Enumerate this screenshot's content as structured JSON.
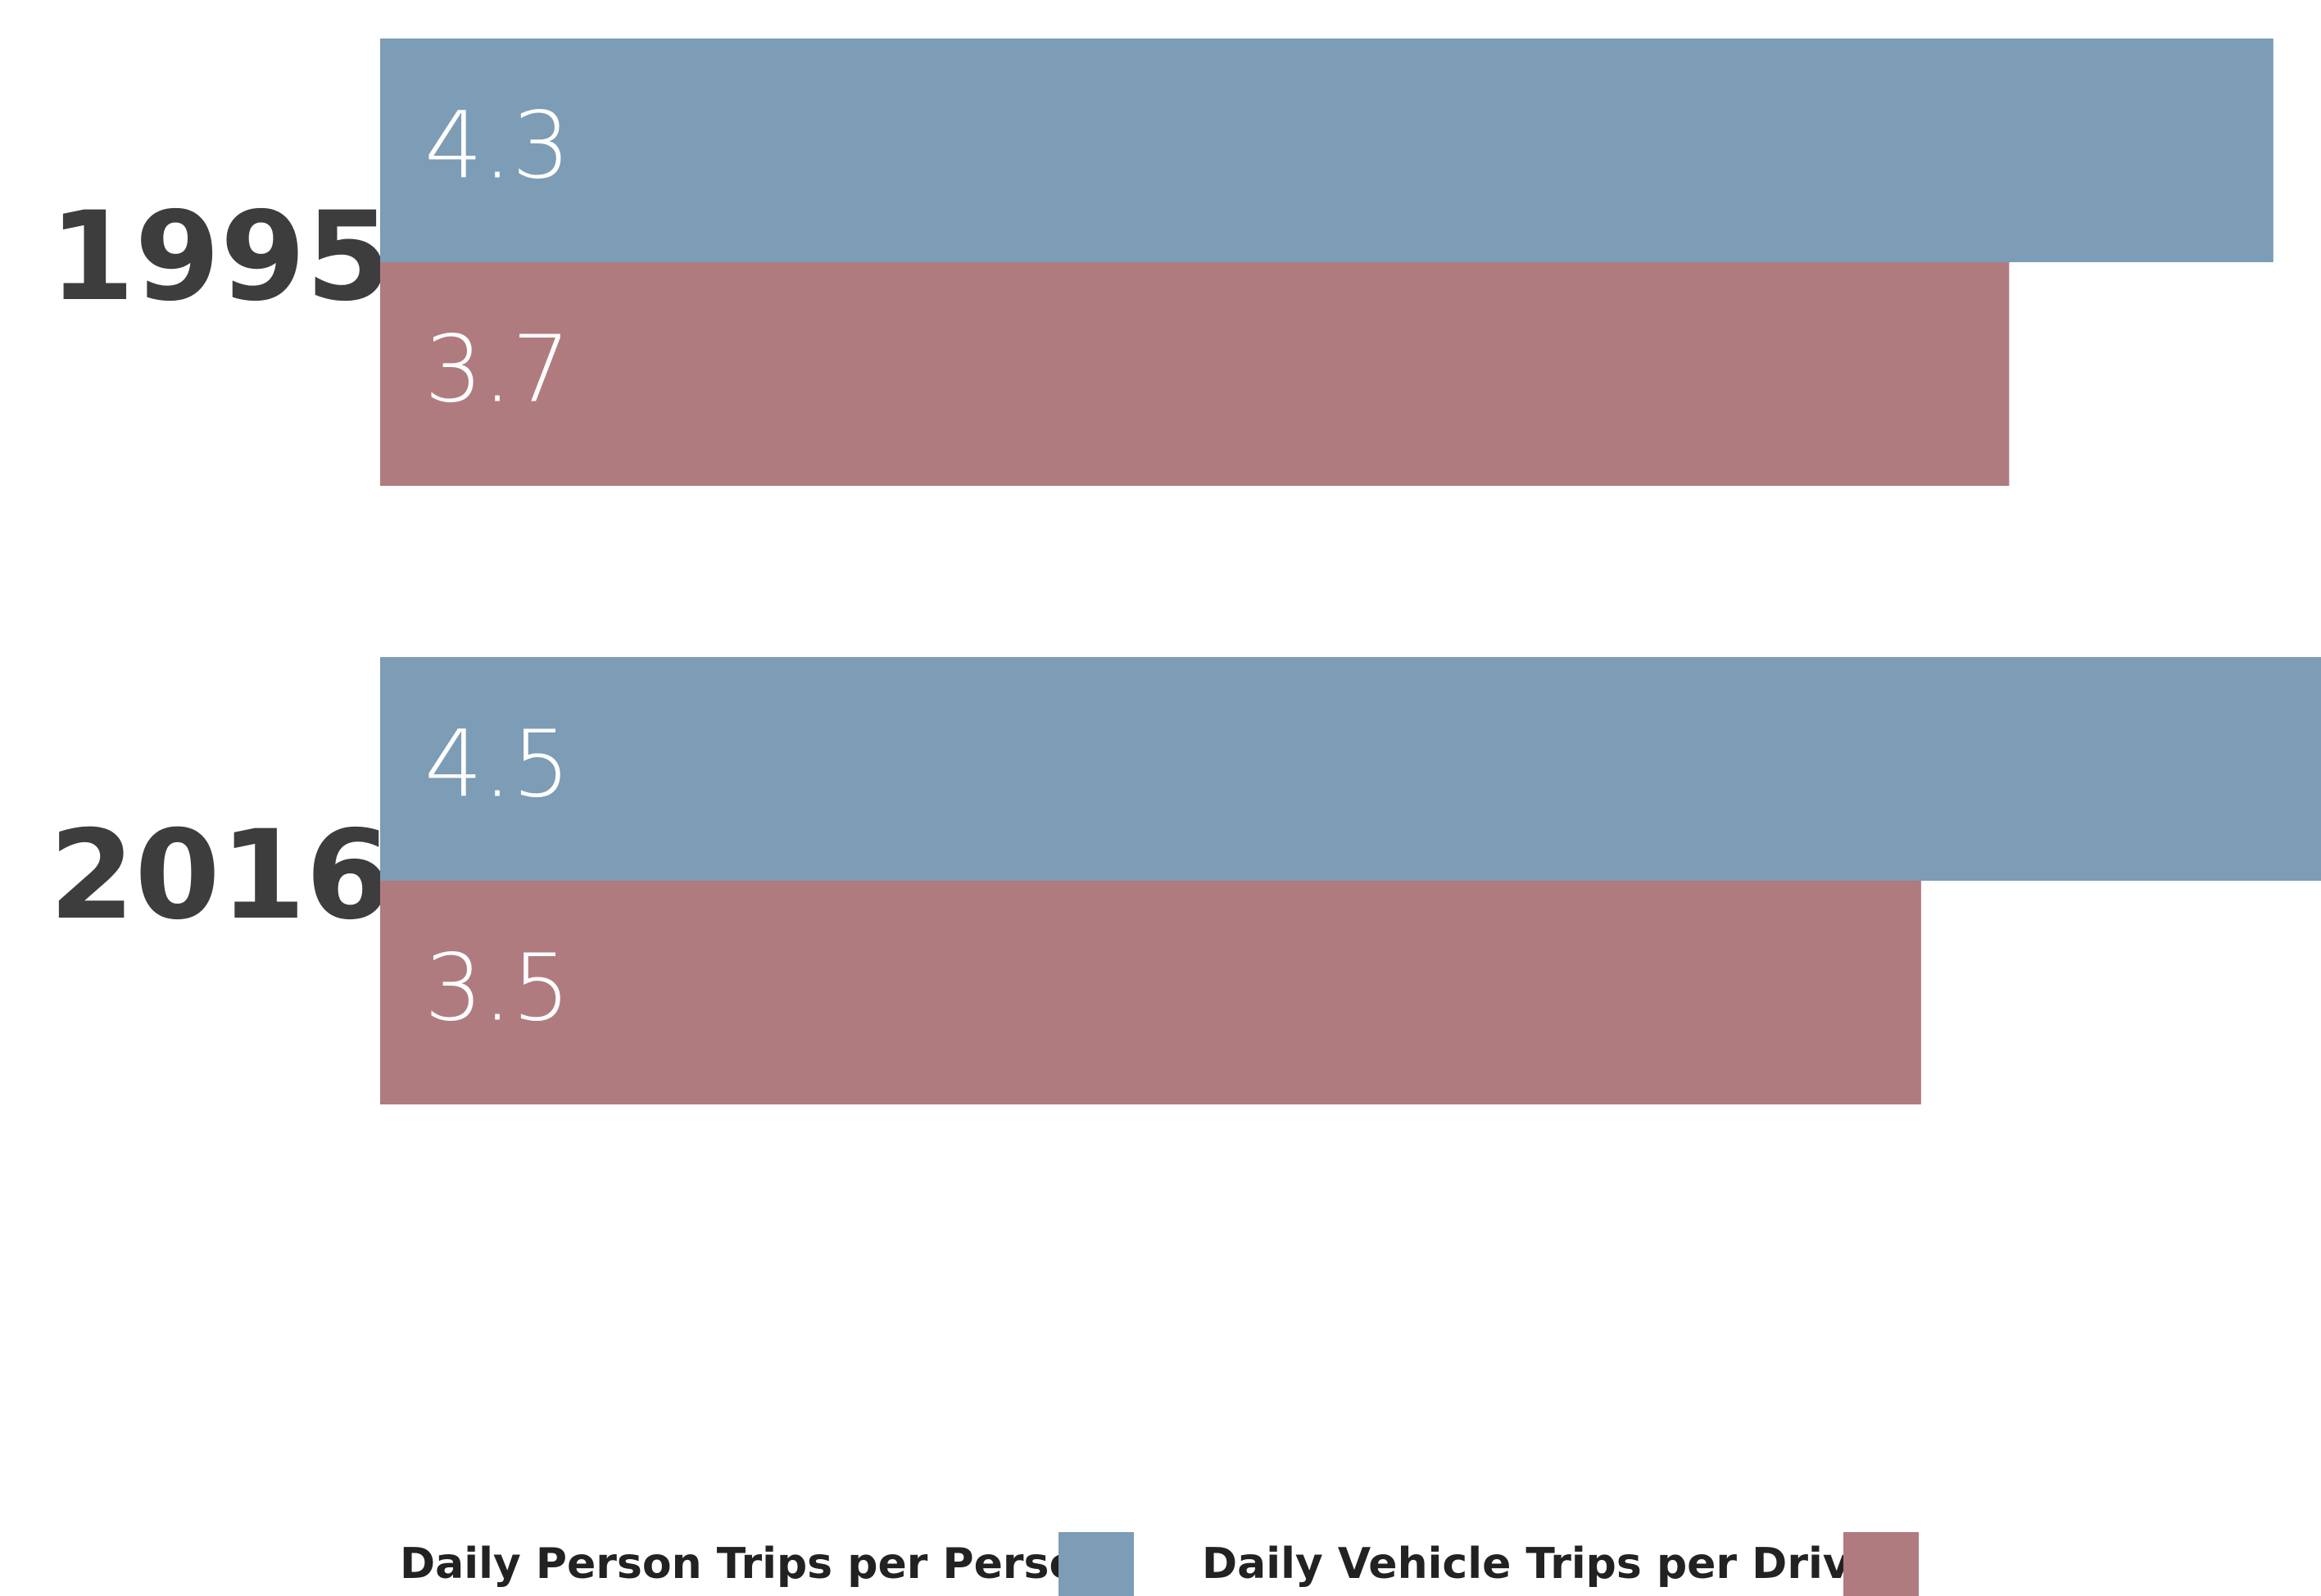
{
  "chart_data": {
    "type": "bar",
    "orientation": "horizontal",
    "categories": [
      "1995",
      "2016"
    ],
    "series": [
      {
        "name": "Daily Person Trips per Person",
        "color": "#7d9cb5",
        "values": [
          4.3,
          4.5
        ]
      },
      {
        "name": "Daily Vehicle Trips per Driver",
        "color": "#b07b7f",
        "values": [
          3.7,
          3.5
        ]
      }
    ]
  }
}
